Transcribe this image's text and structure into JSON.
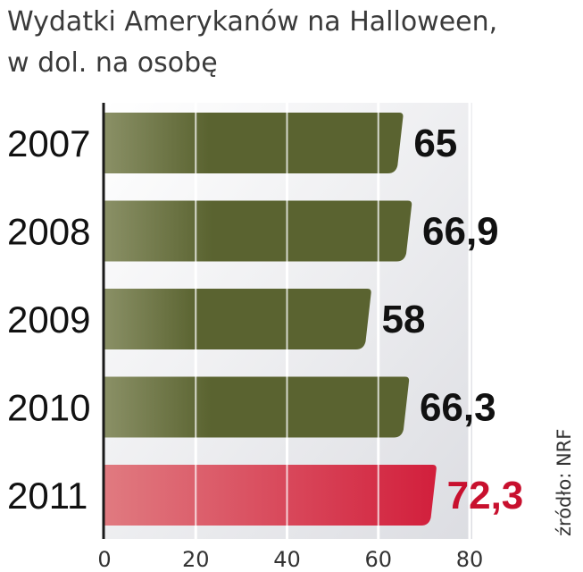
{
  "title_line1": "Wydatki Amerykanów na Halloween,",
  "title_line2": "w dol. na osobę",
  "source": "źródło: NRF",
  "colors": {
    "bar": "#5a6330",
    "bar_light": "#8a9066",
    "highlight": "#d21f3c",
    "highlight_light": "#e07a80",
    "label": "#111111",
    "highlight_label": "#c8102e"
  },
  "chart_data": {
    "type": "bar",
    "orientation": "horizontal",
    "categories": [
      "2007",
      "2008",
      "2009",
      "2010",
      "2011"
    ],
    "values": [
      65,
      66.9,
      58,
      66.3,
      72.3
    ],
    "value_labels": [
      "65",
      "66,9",
      "58",
      "66,3",
      "72,3"
    ],
    "highlight": [
      false,
      false,
      false,
      false,
      true
    ],
    "xlim": [
      0,
      80
    ],
    "xticks": [
      0,
      20,
      40,
      60,
      80
    ],
    "grid": true
  }
}
